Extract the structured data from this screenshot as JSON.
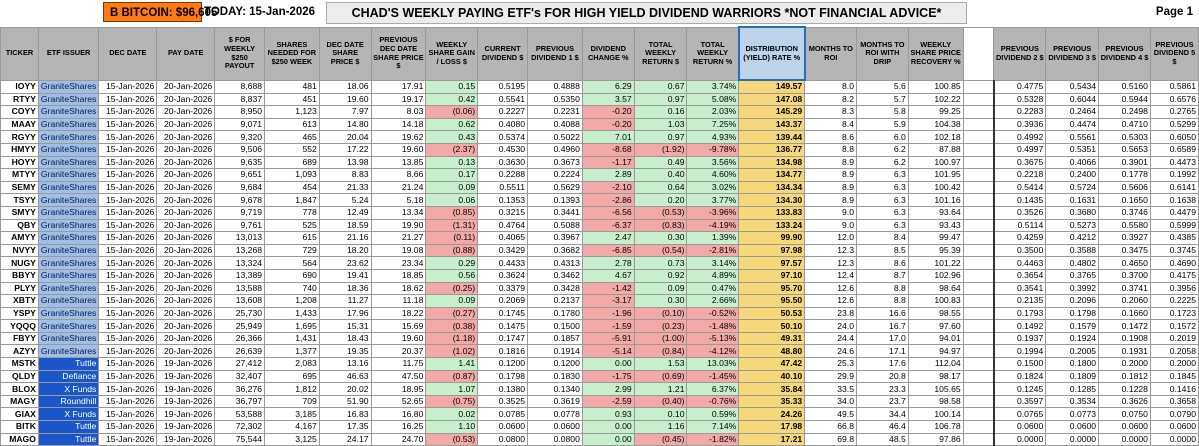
{
  "banner": {
    "bitcoin": "B BITCOIN: $96,605",
    "today": "TODAY:   15-Jan-2026",
    "title": "CHAD'S WEEKLY PAYING ETF's FOR HIGH YIELD DIVIDEND WARRIORS          *NOT FINANCIAL ADVICE*",
    "page": "Page 1"
  },
  "colors": {
    "bitcoin_bg": "#ff7a12",
    "issuer_bg": "#9fbfe4",
    "fund_bg": "#1b57c8",
    "positive": "#c7efce",
    "negative": "#f4a9a9",
    "rate_bg": "#f6d87a"
  },
  "headers": [
    "TICKER",
    "ETF ISSUER",
    "DEC DATE",
    "PAY DATE",
    "$ FOR WEEKLY $250 PAYOUT",
    "SHARES NEEDED FOR $250 WEEK",
    "DEC DATE SHARE PRICE $",
    "PREVIOUS DEC DATE SHARE PRICE $",
    "WEEKLY SHARE GAIN / LOSS $",
    "CURRENT DIVIDEND $",
    "PREVIOUS DIVIDEND 1 $",
    "DIVIDEND CHANGE %",
    "TOTAL WEEKLY RETURN $",
    "TOTAL WEEKLY RETURN %",
    "DISTRIBUTION (YIELD) RATE %",
    "MONTHS TO ROI",
    "MONTHS TO ROI WITH DRIP",
    "WEEKLY SHARE PRICE RECOVERY %",
    "",
    "PREVIOUS DIVIDEND 2 $",
    "PREVIOUS DIVIDEND 3 $",
    "PREVIOUS DIVIDEND 4 $",
    "PREVIOUS DIVIDEND 5 $"
  ],
  "rows": [
    [
      "IOYY",
      "GraniteShares",
      "15-Jan-2026",
      "20-Jan-2026",
      "8,688",
      "481",
      "18.06",
      "17.91",
      "0.15",
      "0.5195",
      "0.4888",
      "6.29",
      "0.67",
      "3.74%",
      "149.57",
      "8.0",
      "5.6",
      "100.85",
      "0.4775",
      "0.5434",
      "0.5160",
      "0.5861"
    ],
    [
      "RTYY",
      "GraniteShares",
      "15-Jan-2026",
      "20-Jan-2026",
      "8,837",
      "451",
      "19.60",
      "19.17",
      "0.42",
      "0.5541",
      "0.5350",
      "3.57",
      "0.97",
      "5.08%",
      "147.08",
      "8.2",
      "5.7",
      "102.22",
      "0.5328",
      "0.6044",
      "0.5944",
      "0.6576"
    ],
    [
      "COYY",
      "GraniteShares",
      "15-Jan-2026",
      "20-Jan-2026",
      "8,950",
      "1,123",
      "7.97",
      "8.03",
      "(0.06)",
      "0.2227",
      "0.2231",
      "-0.20",
      "0.16",
      "2.03%",
      "145.29",
      "8.3",
      "5.8",
      "99.25",
      "0.2283",
      "0.2464",
      "0.2498",
      "0.2765"
    ],
    [
      "MAAY",
      "GraniteShares",
      "15-Jan-2026",
      "20-Jan-2026",
      "9,071",
      "613",
      "14.80",
      "14.18",
      "0.62",
      "0.4080",
      "0.4088",
      "-0.20",
      "1.03",
      "7.25%",
      "143.37",
      "8.4",
      "5.9",
      "104.38",
      "0.3936",
      "0.4474",
      "0.4710",
      "0.5299"
    ],
    [
      "RGYY",
      "GraniteShares",
      "15-Jan-2026",
      "20-Jan-2026",
      "9,320",
      "465",
      "20.04",
      "19.62",
      "0.43",
      "0.5374",
      "0.5022",
      "7.01",
      "0.97",
      "4.93%",
      "139.44",
      "8.6",
      "6.0",
      "102.18",
      "0.4992",
      "0.5561",
      "0.5303",
      "0.6050"
    ],
    [
      "HMYY",
      "GraniteShares",
      "15-Jan-2026",
      "20-Jan-2026",
      "9,506",
      "552",
      "17.22",
      "19.60",
      "(2.37)",
      "0.4530",
      "0.4960",
      "-8.68",
      "(1.92)",
      "-9.78%",
      "136.77",
      "8.8",
      "6.2",
      "87.88",
      "0.4997",
      "0.5351",
      "0.5653",
      "0.6589"
    ],
    [
      "HOYY",
      "GraniteShares",
      "15-Jan-2026",
      "20-Jan-2026",
      "9,635",
      "689",
      "13.98",
      "13.85",
      "0.13",
      "0.3630",
      "0.3673",
      "-1.17",
      "0.49",
      "3.56%",
      "134.98",
      "8.9",
      "6.2",
      "100.97",
      "0.3675",
      "0.4066",
      "0.3901",
      "0.4473"
    ],
    [
      "MTYY",
      "GraniteShares",
      "15-Jan-2026",
      "20-Jan-2026",
      "9,651",
      "1,093",
      "8.83",
      "8.66",
      "0.17",
      "0.2288",
      "0.2224",
      "2.89",
      "0.40",
      "4.60%",
      "134.77",
      "8.9",
      "6.3",
      "101.95",
      "0.2218",
      "0.2400",
      "0.1778",
      "0.1992"
    ],
    [
      "SEMY",
      "GraniteShares",
      "15-Jan-2026",
      "20-Jan-2026",
      "9,684",
      "454",
      "21.33",
      "21.24",
      "0.09",
      "0.5511",
      "0.5629",
      "-2.10",
      "0.64",
      "3.02%",
      "134.34",
      "8.9",
      "6.3",
      "100.42",
      "0.5414",
      "0.5724",
      "0.5606",
      "0.6141"
    ],
    [
      "TSYY",
      "GraniteShares",
      "15-Jan-2026",
      "20-Jan-2026",
      "9,678",
      "1,847",
      "5.24",
      "5.18",
      "0.06",
      "0.1353",
      "0.1393",
      "-2.86",
      "0.20",
      "3.77%",
      "134.30",
      "8.9",
      "6.3",
      "101.16",
      "0.1435",
      "0.1631",
      "0.1650",
      "0.1638"
    ],
    [
      "SMYY",
      "GraniteShares",
      "15-Jan-2026",
      "20-Jan-2026",
      "9,719",
      "778",
      "12.49",
      "13.34",
      "(0.85)",
      "0.3215",
      "0.3441",
      "-6.56",
      "(0.53)",
      "-3.96%",
      "133.83",
      "9.0",
      "6.3",
      "93.64",
      "0.3526",
      "0.3680",
      "0.3746",
      "0.4479"
    ],
    [
      "QBY",
      "GraniteShares",
      "15-Jan-2026",
      "20-Jan-2026",
      "9,761",
      "525",
      "18.59",
      "19.90",
      "(1.31)",
      "0.4764",
      "0.5088",
      "-6.37",
      "(0.83)",
      "-4.19%",
      "133.24",
      "9.0",
      "6.3",
      "93.43",
      "0.5114",
      "0.5273",
      "0.5580",
      "0.5999"
    ],
    [
      "AMYY",
      "GraniteShares",
      "15-Jan-2026",
      "20-Jan-2026",
      "13,013",
      "615",
      "21.16",
      "21.27",
      "(0.11)",
      "0.4065",
      "0.3967",
      "2.47",
      "0.30",
      "1.39%",
      "99.90",
      "12.0",
      "8.4",
      "99.47",
      "0.4259",
      "0.4212",
      "0.3927",
      "0.4385"
    ],
    [
      "NVYY",
      "GraniteShares",
      "15-Jan-2026",
      "20-Jan-2026",
      "13,268",
      "729",
      "18.20",
      "19.08",
      "(0.88)",
      "0.3429",
      "0.3682",
      "-6.85",
      "(0.54)",
      "-2.81%",
      "97.98",
      "12.3",
      "8.5",
      "95.39",
      "0.3500",
      "0.3588",
      "0.3475",
      "0.3745"
    ],
    [
      "NUGY",
      "GraniteShares",
      "15-Jan-2026",
      "20-Jan-2026",
      "13,324",
      "564",
      "23.62",
      "23.34",
      "0.29",
      "0.4433",
      "0.4313",
      "2.78",
      "0.73",
      "3.14%",
      "97.57",
      "12.3",
      "8.6",
      "101.22",
      "0.4463",
      "0.4802",
      "0.4650",
      "0.4690"
    ],
    [
      "BBYY",
      "GraniteShares",
      "15-Jan-2026",
      "20-Jan-2026",
      "13,389",
      "690",
      "19.41",
      "18.85",
      "0.56",
      "0.3624",
      "0.3462",
      "4.67",
      "0.92",
      "4.89%",
      "97.10",
      "12.4",
      "8.7",
      "102.96",
      "0.3654",
      "0.3765",
      "0.3700",
      "0.4175"
    ],
    [
      "PLYY",
      "GraniteShares",
      "15-Jan-2026",
      "20-Jan-2026",
      "13,588",
      "740",
      "18.36",
      "18.62",
      "(0.25)",
      "0.3379",
      "0.3428",
      "-1.42",
      "0.09",
      "0.47%",
      "95.70",
      "12.6",
      "8.8",
      "98.64",
      "0.3541",
      "0.3992",
      "0.3741",
      "0.3956"
    ],
    [
      "XBTY",
      "GraniteShares",
      "15-Jan-2026",
      "20-Jan-2026",
      "13,608",
      "1,208",
      "11.27",
      "11.18",
      "0.09",
      "0.2069",
      "0.2137",
      "-3.17",
      "0.30",
      "2.66%",
      "95.50",
      "12.6",
      "8.8",
      "100.83",
      "0.2135",
      "0.2096",
      "0.2060",
      "0.2225"
    ],
    [
      "YSPY",
      "GraniteShares",
      "15-Jan-2026",
      "20-Jan-2026",
      "25,730",
      "1,433",
      "17.96",
      "18.22",
      "(0.27)",
      "0.1745",
      "0.1780",
      "-1.96",
      "(0.10)",
      "-0.52%",
      "50.53",
      "23.8",
      "16.6",
      "98.55",
      "0.1793",
      "0.1798",
      "0.1660",
      "0.1723"
    ],
    [
      "YQQQ",
      "GraniteShares",
      "15-Jan-2026",
      "20-Jan-2026",
      "25,949",
      "1,695",
      "15.31",
      "15.69",
      "(0.38)",
      "0.1475",
      "0.1500",
      "-1.59",
      "(0.23)",
      "-1.48%",
      "50.10",
      "24.0",
      "16.7",
      "97.60",
      "0.1492",
      "0.1579",
      "0.1472",
      "0.1572"
    ],
    [
      "FBYY",
      "GraniteShares",
      "15-Jan-2026",
      "20-Jan-2026",
      "26,366",
      "1,431",
      "18.43",
      "19.60",
      "(1.18)",
      "0.1747",
      "0.1857",
      "-5.91",
      "(1.00)",
      "-5.13%",
      "49.31",
      "24.4",
      "17.0",
      "94.01",
      "0.1937",
      "0.1924",
      "0.1908",
      "0.2019"
    ],
    [
      "AZYY",
      "GraniteShares",
      "15-Jan-2026",
      "20-Jan-2026",
      "26,639",
      "1,377",
      "19.35",
      "20.37",
      "(1.02)",
      "0.1816",
      "0.1914",
      "-5.14",
      "(0.84)",
      "-4.12%",
      "48.80",
      "24.6",
      "17.1",
      "94.97",
      "0.1994",
      "0.2005",
      "0.1931",
      "0.2058"
    ],
    [
      "MSTK",
      "Tuttle",
      "15-Jan-2026",
      "19-Jan-2026",
      "27,412",
      "2,083",
      "13.16",
      "11.75",
      "1.41",
      "0.1200",
      "0.1200",
      "0.00",
      "1.53",
      "13.03%",
      "47.42",
      "25.3",
      "17.6",
      "112.04",
      "0.1500",
      "0.1800",
      "0.2000",
      "0.2000"
    ],
    [
      "QLDY",
      "Defiance",
      "15-Jan-2026",
      "19-Jan-2026",
      "32,407",
      "695",
      "46.63",
      "47.50",
      "(0.87)",
      "0.1798",
      "0.1830",
      "-1.75",
      "(0.69)",
      "-1.45%",
      "40.10",
      "29.9",
      "20.8",
      "98.17",
      "0.1824",
      "0.1809",
      "0.1812",
      "0.1845"
    ],
    [
      "BLOX",
      "X Funds",
      "15-Jan-2026",
      "19-Jan-2026",
      "36,276",
      "1,812",
      "20.02",
      "18.95",
      "1.07",
      "0.1380",
      "0.1340",
      "2.99",
      "1.21",
      "6.37%",
      "35.84",
      "33.5",
      "23.3",
      "105.65",
      "0.1245",
      "0.1285",
      "0.1228",
      "0.1416"
    ],
    [
      "MAGY",
      "Roundhill",
      "15-Jan-2026",
      "19-Jan-2026",
      "36,797",
      "709",
      "51.90",
      "52.65",
      "(0.75)",
      "0.3525",
      "0.3619",
      "-2.59",
      "(0.40)",
      "-0.76%",
      "35.33",
      "34.0",
      "23.7",
      "98.58",
      "0.3597",
      "0.3534",
      "0.3626",
      "0.3658"
    ],
    [
      "GIAX",
      "X Funds",
      "15-Jan-2026",
      "19-Jan-2026",
      "53,588",
      "3,185",
      "16.83",
      "16.80",
      "0.02",
      "0.0785",
      "0.0778",
      "0.93",
      "0.10",
      "0.59%",
      "24.26",
      "49.5",
      "34.4",
      "100.14",
      "0.0765",
      "0.0773",
      "0.0750",
      "0.0790"
    ],
    [
      "BITK",
      "Tuttle",
      "15-Jan-2026",
      "19-Jan-2026",
      "72,302",
      "4,167",
      "17.35",
      "16.25",
      "1.10",
      "0.0600",
      "0.0600",
      "0.00",
      "1.16",
      "7.14%",
      "17.98",
      "66.8",
      "46.4",
      "106.78",
      "0.0600",
      "0.0600",
      "0.0600",
      "0.0600"
    ],
    [
      "MAGO",
      "Tuttle",
      "15-Jan-2026",
      "19-Jan-2026",
      "75,544",
      "3,125",
      "24.17",
      "24.70",
      "(0.53)",
      "0.0800",
      "0.0800",
      "0.00",
      "(0.45)",
      "-1.82%",
      "17.21",
      "69.8",
      "48.5",
      "97.86",
      "0.0000",
      "0.0000",
      "0.0000",
      "0.0000"
    ]
  ]
}
